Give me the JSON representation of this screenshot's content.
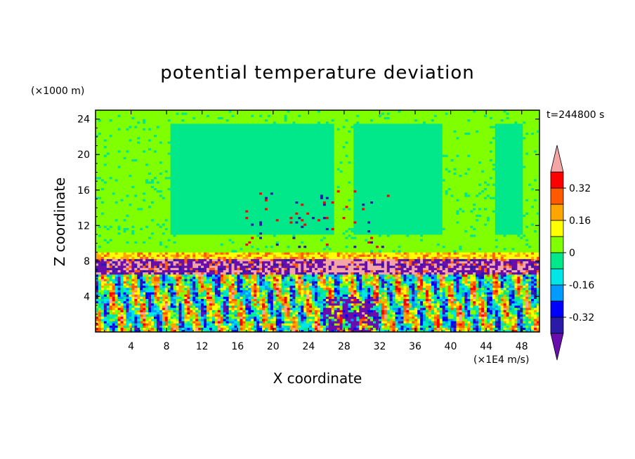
{
  "chart_data": {
    "type": "heatmap",
    "title": "potential temperature deviation",
    "time_label": "t=244800 s",
    "xlabel": "X coordinate",
    "ylabel": "Z coordinate",
    "x_unit": "(×1E4 m/s)",
    "y_unit": "(×1000 m)",
    "xlim": [
      0,
      50
    ],
    "ylim": [
      0,
      25
    ],
    "xticks": [
      "4",
      "8",
      "12",
      "16",
      "20",
      "24",
      "28",
      "32",
      "36",
      "40",
      "44",
      "48"
    ],
    "yticks": [
      "4",
      "8",
      "12",
      "16",
      "20",
      "24"
    ],
    "xtick_values": [
      4,
      8,
      12,
      16,
      20,
      24,
      28,
      32,
      36,
      40,
      44,
      48
    ],
    "ytick_values": [
      4,
      8,
      12,
      16,
      20,
      24
    ],
    "colorbar": {
      "levels": [
        -0.4,
        -0.32,
        -0.24,
        -0.16,
        -0.08,
        0,
        0.08,
        0.16,
        0.24,
        0.32,
        0.4
      ],
      "labels": [
        "0.32",
        "0.16",
        "0",
        "-0.16",
        "-0.32"
      ],
      "label_values": [
        0.32,
        0.16,
        0,
        -0.16,
        -0.32
      ],
      "colors": [
        "#6a0dad",
        "#2a1aa8",
        "#0000ff",
        "#009bff",
        "#00e6e6",
        "#00e88a",
        "#80ff00",
        "#ffff00",
        "#ffa500",
        "#ff5a00",
        "#ff0000",
        "#f4a6a6"
      ]
    },
    "layers": [
      {
        "z_range": [
          0,
          6.5
        ],
        "description_values": "mixed"
      },
      {
        "z_range": [
          6.5,
          8.3
        ],
        "description_values": "mixed"
      },
      {
        "z_range": [
          8.3,
          9
        ],
        "description_values": "positive"
      },
      {
        "z_range": [
          9,
          25
        ],
        "description_values": "near zero"
      }
    ]
  }
}
